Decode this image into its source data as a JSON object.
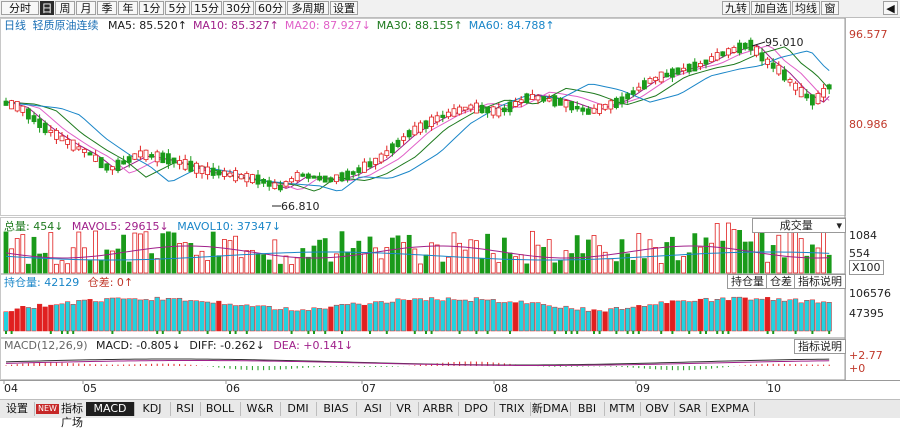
{
  "toolbar": {
    "left": [
      "分时",
      "日",
      "周",
      "月",
      "季",
      "年",
      "1分",
      "5分",
      "15分",
      "30分",
      "60分",
      "多周期",
      "设置"
    ],
    "active_index": 1,
    "right": [
      "九转",
      "加自选",
      "均线",
      "窗"
    ]
  },
  "main": {
    "period_label": "日线",
    "title": "轻质原油连续",
    "ma": [
      {
        "label": "MA5: 85.520↑",
        "color": "#1a1a1a"
      },
      {
        "label": "MA10: 85.327↑",
        "color": "#a0208a"
      },
      {
        "label": "MA20: 87.927↓",
        "color": "#e060c8"
      },
      {
        "label": "MA30: 88.155↑",
        "color": "#1e7a1e"
      },
      {
        "label": "MA60: 84.788↑",
        "color": "#1a86c8"
      }
    ],
    "y_high": "96.577",
    "y_low": "80.986",
    "peak_label": "95.010",
    "trough_label": "66.810"
  },
  "volume": {
    "label_total": "总量: 454↓",
    "label_mavol5": "MAVOL5: 29615↓",
    "label_mavol10": "MAVOL10: 37347↓",
    "selector": "成交量",
    "y_top": "1084",
    "y_mid": "554",
    "y_unit": "X100"
  },
  "open_interest": {
    "label_oi": "持仓量: 42129",
    "label_diff": "仓差: 0↑",
    "btn_oi": "持仓量",
    "btn_diff": "仓差",
    "btn_help": "指标说明",
    "y_top": "106576",
    "y_mid": "47395"
  },
  "macd": {
    "label_params": "MACD(12,26,9)",
    "label_macd": "MACD: -0.805↓",
    "label_diff": "DIFF: -0.262↓",
    "label_dea": "DEA: +0.141↓",
    "btn_help": "指标说明",
    "y_top": "+2.77",
    "y_zero": "+0"
  },
  "x_axis": [
    "04",
    "05",
    "06",
    "07",
    "08",
    "09",
    "10"
  ],
  "bottom_tabs": [
    "设置",
    "指标广场",
    "MACD",
    "KDJ",
    "RSI",
    "BOLL",
    "W&R",
    "DMI",
    "BIAS",
    "ASI",
    "VR",
    "ARBR",
    "DPO",
    "TRIX",
    "新DMA",
    "BBI",
    "MTM",
    "OBV",
    "SAR",
    "EXPMA"
  ],
  "bottom_new_badge": "NEW",
  "bottom_active": "MACD",
  "colors": {
    "up": "#e02020",
    "down": "#1a9a1a",
    "oi": "#22d3e0",
    "oi_red": "#e02020"
  },
  "chart_data": {
    "type": "candlestick",
    "title": "轻质原油连续",
    "x_ticks": [
      "04",
      "05",
      "06",
      "07",
      "08",
      "09",
      "10"
    ],
    "y_ticks": [
      "96.577",
      "80.986"
    ],
    "marked_high": 95.01,
    "marked_low": 66.81
  }
}
